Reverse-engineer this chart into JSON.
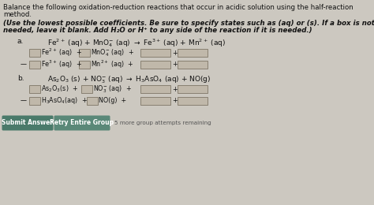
{
  "bg_color": "#ccc8c0",
  "title_line1": "Balance the following oxidation-reduction reactions that occur in acidic solution using the half-reaction",
  "title_line2": "method.",
  "instr_line1": "(Use the lowest possible coefficients. Be sure to specify states such as (aq) or (s). If a box is not",
  "instr_line2": "needed, leave it blank. Add H₂O or H⁺ to any side of the reaction if it is needed.)",
  "part_a_label": "a.",
  "part_b_label": "b.",
  "btn1_text": "Submit Answer",
  "btn2_text": "Retry Entire Group",
  "btn3_text": "5 more group attempts remaining",
  "btn1_color": "#4a7a6a",
  "btn2_color": "#5a8878",
  "box_color": "#c0b8aa",
  "box_border": "#888070",
  "text_color": "#111111",
  "arrow_color": "#333333",
  "title_fs": 6.2,
  "instr_fs": 6.2,
  "label_fs": 6.5,
  "eq_fs": 6.5,
  "row_fs": 5.8,
  "btn_fs": 5.5
}
